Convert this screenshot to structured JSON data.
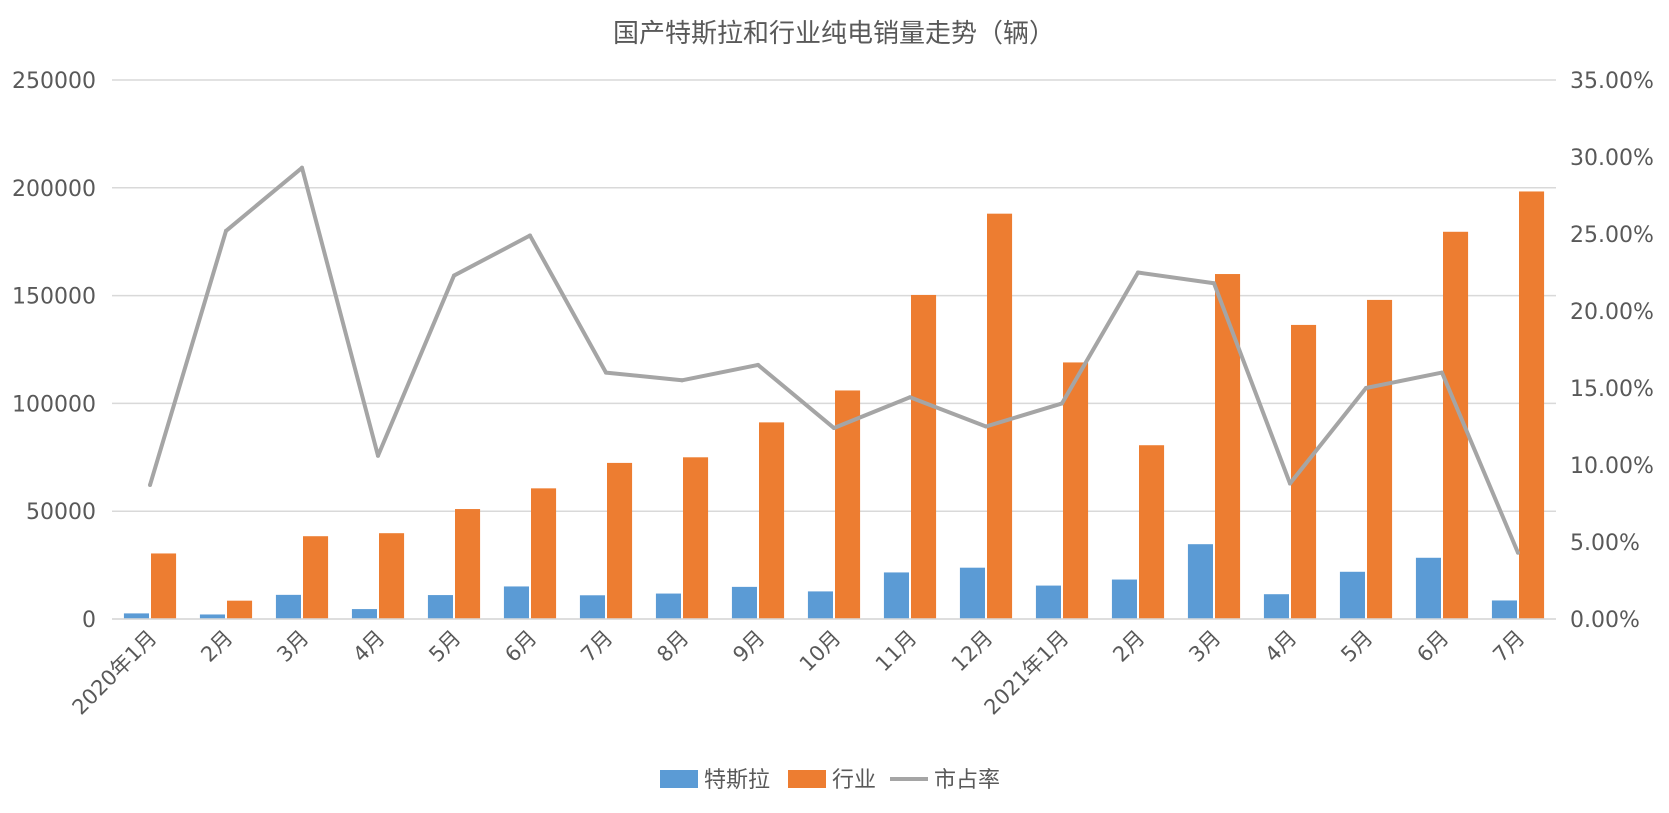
{
  "chart_data": {
    "type": "bar",
    "title": "国产特斯拉和行业纯电销量走势（辆）",
    "categories": [
      "2020年1月",
      "2月",
      "3月",
      "4月",
      "5月",
      "6月",
      "7月",
      "8月",
      "9月",
      "10月",
      "11月",
      "12月",
      "2021年1月",
      "2月",
      "3月",
      "4月",
      "5月",
      "6月",
      "7月"
    ],
    "series": [
      {
        "name": "特斯拉",
        "type": "bar",
        "axis": "left",
        "color": "#5B9BD5",
        "values": [
          2600,
          2100,
          11200,
          4600,
          11100,
          15100,
          11000,
          11800,
          14900,
          12800,
          21600,
          23800,
          15500,
          18300,
          34700,
          11500,
          21900,
          28400,
          8600
        ]
      },
      {
        "name": "行业",
        "type": "bar",
        "axis": "left",
        "color": "#ED7D31",
        "values": [
          30400,
          8500,
          38400,
          39800,
          51000,
          60600,
          72400,
          75000,
          91200,
          106000,
          150300,
          188000,
          119000,
          80600,
          160000,
          136400,
          148000,
          179600,
          198300
        ]
      },
      {
        "name": "市占率",
        "type": "line",
        "axis": "right",
        "color": "#A5A5A5",
        "values": [
          0.087,
          0.252,
          0.293,
          0.106,
          0.223,
          0.249,
          0.16,
          0.155,
          0.165,
          0.124,
          0.144,
          0.125,
          0.14,
          0.225,
          0.218,
          0.088,
          0.15,
          0.16,
          0.043
        ]
      }
    ],
    "ylim": [
      0,
      250000
    ],
    "yticks": [
      "0",
      "50000",
      "100000",
      "150000",
      "200000",
      "250000"
    ],
    "y2lim": [
      0,
      0.35
    ],
    "y2ticks": [
      "0.00%",
      "5.00%",
      "10.00%",
      "15.00%",
      "20.00%",
      "25.00%",
      "30.00%",
      "35.00%"
    ],
    "grid": true,
    "legend_position": "bottom"
  }
}
